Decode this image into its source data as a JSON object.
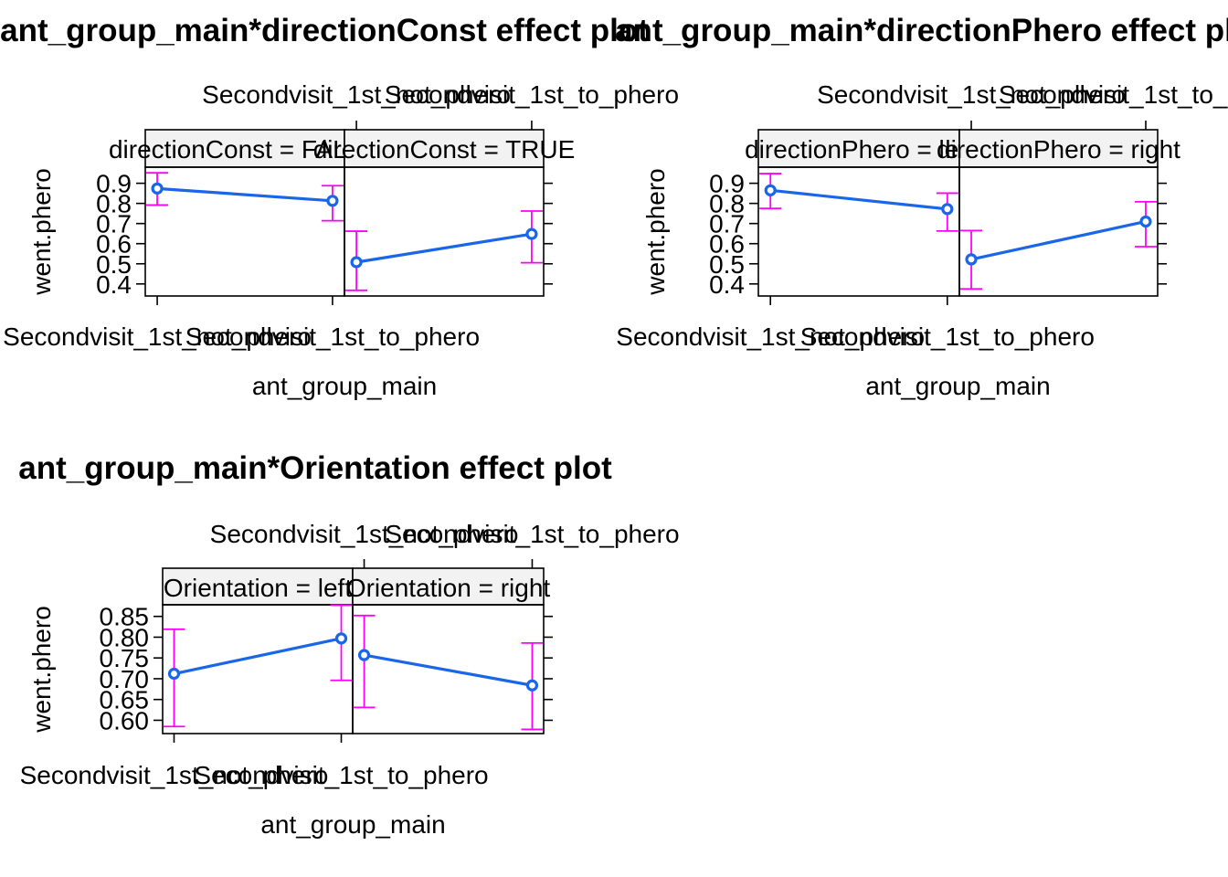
{
  "chart_data": [
    {
      "type": "line",
      "title": "ant_group_main*directionConst effect plot",
      "xlabel": "ant_group_main",
      "ylabel": "went.phero",
      "categories": [
        "Secondvisit_1st_not_phero",
        "Secondvisit_1st_to_phero"
      ],
      "y_ticks": [
        "0.4",
        "0.5",
        "0.6",
        "0.7",
        "0.8",
        "0.9"
      ],
      "ylim": [
        0.34,
        0.98
      ],
      "panels": [
        {
          "strip": "directionConst = FALSE",
          "values": [
            0.874,
            0.813
          ],
          "lower": [
            0.792,
            0.714
          ],
          "upper": [
            0.952,
            0.888
          ]
        },
        {
          "strip": "directionConst = TRUE",
          "values": [
            0.508,
            0.648
          ],
          "lower": [
            0.368,
            0.505
          ],
          "upper": [
            0.662,
            0.762
          ]
        }
      ]
    },
    {
      "type": "line",
      "title": "ant_group_main*directionPhero effect plot",
      "xlabel": "ant_group_main",
      "ylabel": "went.phero",
      "categories": [
        "Secondvisit_1st_not_phero",
        "Secondvisit_1st_to_phero"
      ],
      "y_ticks": [
        "0.4",
        "0.5",
        "0.6",
        "0.7",
        "0.8",
        "0.9"
      ],
      "ylim": [
        0.34,
        0.98
      ],
      "panels": [
        {
          "strip": "directionPhero = left",
          "values": [
            0.865,
            0.772
          ],
          "lower": [
            0.775,
            0.663
          ],
          "upper": [
            0.948,
            0.851
          ]
        },
        {
          "strip": "directionPhero = right",
          "values": [
            0.522,
            0.71
          ],
          "lower": [
            0.375,
            0.585
          ],
          "upper": [
            0.665,
            0.808
          ]
        }
      ]
    },
    {
      "type": "line",
      "title": "ant_group_main*Orientation effect plot",
      "xlabel": "ant_group_main",
      "ylabel": "went.phero",
      "categories": [
        "Secondvisit_1st_not_phero",
        "Secondvisit_1st_to_phero"
      ],
      "y_ticks": [
        "0.60",
        "0.65",
        "0.70",
        "0.75",
        "0.80",
        "0.85"
      ],
      "ylim": [
        0.568,
        0.878
      ],
      "panels": [
        {
          "strip": "Orientation = left",
          "values": [
            0.712,
            0.797
          ],
          "lower": [
            0.585,
            0.696
          ],
          "upper": [
            0.819,
            0.877
          ]
        },
        {
          "strip": "Orientation = right",
          "values": [
            0.757,
            0.684
          ],
          "lower": [
            0.631,
            0.578
          ],
          "upper": [
            0.852,
            0.786
          ]
        }
      ]
    }
  ]
}
